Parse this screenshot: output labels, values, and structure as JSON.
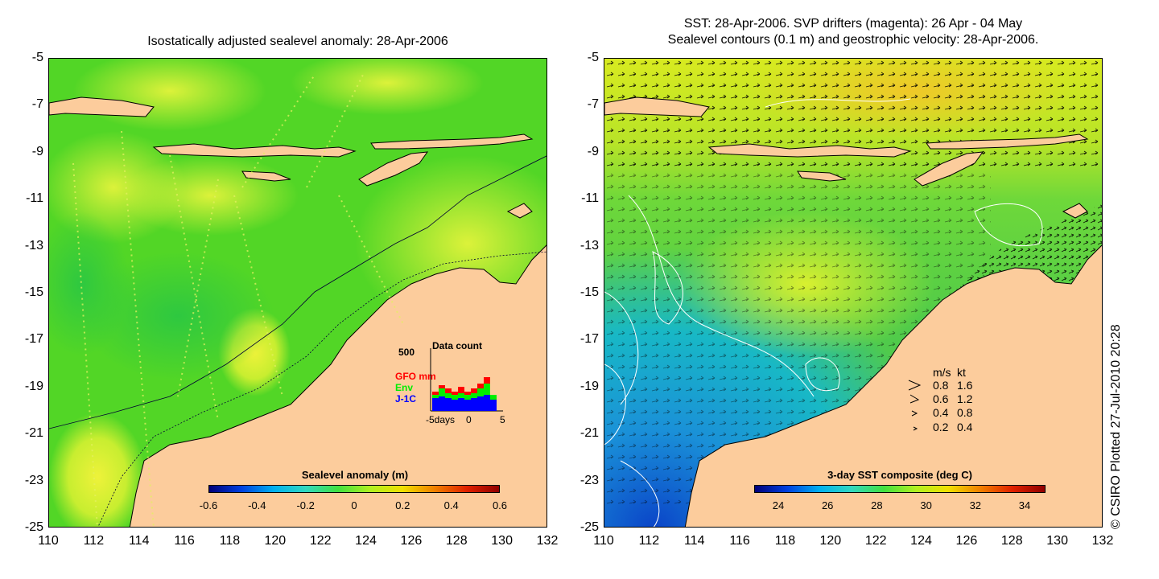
{
  "left_panel": {
    "title": "Isostatically adjusted sealevel anomaly: 28-Apr-2006",
    "y_ticks": [
      "-5",
      "-7",
      "-9",
      "-11",
      "-13",
      "-15",
      "-17",
      "-19",
      "-21",
      "-23",
      "-25"
    ],
    "x_ticks": [
      "110",
      "112",
      "114",
      "116",
      "118",
      "120",
      "122",
      "124",
      "126",
      "128",
      "130",
      "132"
    ],
    "colorbar": {
      "title": "Sealevel anomaly (m)",
      "labels": [
        "-0.6",
        "-0.4",
        "-0.2",
        "0",
        "0.2",
        "0.4",
        "0.6"
      ]
    },
    "inset": {
      "max_label": "500",
      "title": "Data count",
      "series": [
        "GFO mm",
        "Env",
        "J-1C"
      ],
      "series_colors": [
        "#ff0000",
        "#00ee00",
        "#0000ff"
      ],
      "x_labels": [
        "-5days",
        "0",
        "5"
      ]
    }
  },
  "right_panel": {
    "title_line1": "SST: 28-Apr-2006. SVP drifters (magenta): 26 Apr - 04 May",
    "title_line2": "Sealevel contours (0.1 m) and geostrophic velocity: 28-Apr-2006.",
    "y_ticks": [
      "-5",
      "-7",
      "-9",
      "-11",
      "-13",
      "-15",
      "-17",
      "-19",
      "-21",
      "-23",
      "-25"
    ],
    "x_ticks": [
      "110",
      "112",
      "114",
      "116",
      "118",
      "120",
      "122",
      "124",
      "126",
      "128",
      "130",
      "132"
    ],
    "colorbar": {
      "title": "3-day SST composite (deg C)",
      "labels": [
        "24",
        "26",
        "28",
        "30",
        "32",
        "34"
      ]
    },
    "velocity_legend": {
      "header_ms": "m/s",
      "header_kt": "kt",
      "rows": [
        {
          "ms": "0.8",
          "kt": "1.6"
        },
        {
          "ms": "0.6",
          "kt": "1.2"
        },
        {
          "ms": "0.4",
          "kt": "0.8"
        },
        {
          "ms": "0.2",
          "kt": "0.4"
        }
      ]
    }
  },
  "credit": "© CSIRO Plotted 27-Jul-2010 20:28",
  "colors": {
    "land": "#fccc9c",
    "sla_base": "#52d626",
    "sla_high": "#b6ee2a",
    "sst_base": "#7edb36",
    "sst_cool": "#18b8c6",
    "sst_cold": "#0a44c8"
  }
}
